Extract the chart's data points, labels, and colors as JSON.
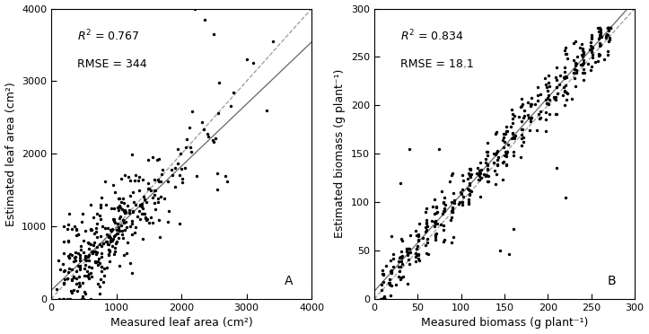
{
  "panel_A": {
    "label": "A",
    "r2_val": "0.767",
    "rmse_val": "344",
    "xlabel": "Measured leaf area (cm²)",
    "ylabel": "Estimated leaf area (cm²)",
    "xlim": [
      0,
      4000
    ],
    "ylim": [
      0,
      4000
    ],
    "xticks": [
      0,
      1000,
      2000,
      3000,
      4000
    ],
    "yticks": [
      0,
      1000,
      2000,
      3000,
      4000
    ],
    "reg_slope": 0.855,
    "reg_intercept": 120,
    "seed_A": 1234
  },
  "panel_B": {
    "label": "B",
    "r2_val": "0.834",
    "rmse_val": "18.1",
    "xlabel": "Measured biomass (g plant⁻¹)",
    "ylabel": "Estimated biomass (g plant⁻¹)",
    "xlim": [
      0,
      300
    ],
    "ylim": [
      0,
      300
    ],
    "xticks": [
      0,
      50,
      100,
      150,
      200,
      250,
      300
    ],
    "yticks": [
      0,
      50,
      100,
      150,
      200,
      250,
      300
    ],
    "reg_slope": 1.0,
    "reg_intercept": 8,
    "seed_B": 5678
  },
  "dot_color": "#000000",
  "dot_size": 6,
  "reg_color": "#666666",
  "one_to_one_color": "#999999",
  "background_color": "#ffffff",
  "tick_fontsize": 8,
  "annotation_fontsize": 9,
  "label_fontsize": 9
}
